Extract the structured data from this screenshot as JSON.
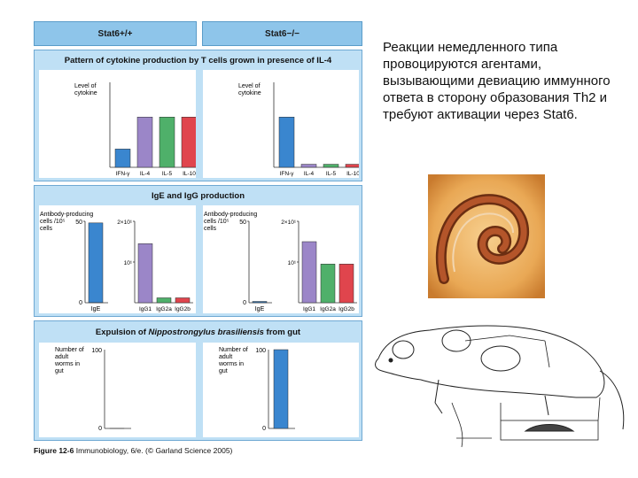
{
  "headers": {
    "left": "Stat6+/+",
    "right": "Stat6−/−"
  },
  "sections": {
    "cytokine": "Pattern of cytokine production by T cells grown in presence of IL-4",
    "ige": "IgE and IgG production",
    "expulsion_pre": "Expulsion of ",
    "expulsion_italic": "Nippostrongylus brasiliensis",
    "expulsion_post": " from gut"
  },
  "caption": {
    "figure": "Figure 12-6",
    "rest": " Immunobiology, 6/e. (© Garland Science 2005)"
  },
  "slide_text": "Реакции немедленного типа провоцируются агентами, вызывающими девиацию иммунного ответа в сторону образования Th2 и требуют активации через Stat6.",
  "colors": {
    "blue": "#3a86cf",
    "purple": "#9b86c8",
    "green": "#4fb06a",
    "red": "#e0454d",
    "panel": "#bfe0f5",
    "header": "#8ec5ea"
  },
  "chart_data": [
    {
      "type": "bar",
      "id": "cyto-wt",
      "ylabel": "Level of cytokine",
      "categories": [
        "IFN-γ",
        "IL-4",
        "IL-5",
        "IL-10"
      ],
      "values": [
        0.24,
        0.66,
        0.66,
        0.66
      ],
      "colors": [
        "#3a86cf",
        "#9b86c8",
        "#4fb06a",
        "#e0454d"
      ],
      "ylim": [
        0,
        1
      ]
    },
    {
      "type": "bar",
      "id": "cyto-ko",
      "ylabel": "Level of cytokine",
      "categories": [
        "IFN-γ",
        "IL-4",
        "IL-5",
        "IL-10"
      ],
      "values": [
        0.66,
        0.04,
        0.04,
        0.04
      ],
      "colors": [
        "#3a86cf",
        "#9b86c8",
        "#4fb06a",
        "#e0454d"
      ],
      "ylim": [
        0,
        1
      ]
    },
    {
      "type": "bar",
      "id": "ige-wt",
      "ylabel": "Antibody-producing cells /10⁵ cells",
      "left_ticks": [
        "0",
        "50"
      ],
      "ige_category": "IgE",
      "ige_value": 49,
      "right_ticks": [
        "10¹",
        "2×10¹"
      ],
      "igg_categories": [
        "IgG1",
        "IgG2a",
        "IgG2b"
      ],
      "igg_values": [
        14.5,
        1.2,
        1.2
      ],
      "igg_ylim": [
        0,
        20
      ],
      "colors": [
        "#3a86cf",
        "#9b86c8",
        "#4fb06a",
        "#e0454d"
      ]
    },
    {
      "type": "bar",
      "id": "ige-ko",
      "ylabel": "Antibody-producing cells /10⁵ cells",
      "left_ticks": [
        "0",
        "50"
      ],
      "ige_category": "IgE",
      "ige_value": 0.8,
      "right_ticks": [
        "10¹",
        "2×10¹"
      ],
      "igg_categories": [
        "IgG1",
        "IgG2a",
        "IgG2b"
      ],
      "igg_values": [
        15,
        9.5,
        9.5
      ],
      "igg_ylim": [
        0,
        20
      ],
      "colors": [
        "#3a86cf",
        "#9b86c8",
        "#4fb06a",
        "#e0454d"
      ]
    },
    {
      "type": "bar",
      "id": "worm-wt",
      "ylabel": "Number of adult worms in gut",
      "ticks": [
        "0",
        "100"
      ],
      "values": [
        0
      ],
      "ylim": [
        0,
        100
      ]
    },
    {
      "type": "bar",
      "id": "worm-ko",
      "ylabel": "Number of adult worms in gut",
      "ticks": [
        "0",
        "100"
      ],
      "values": [
        100
      ],
      "ylim": [
        0,
        100
      ]
    }
  ]
}
